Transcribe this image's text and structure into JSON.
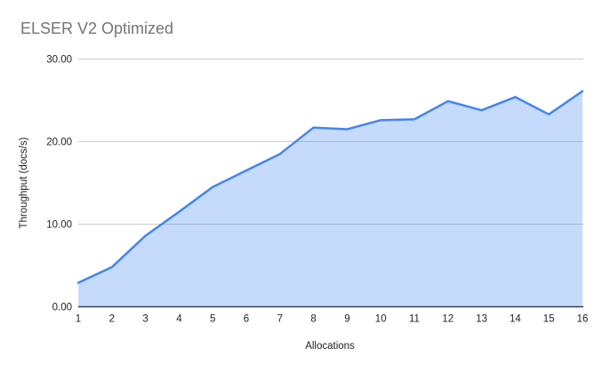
{
  "chart_data": {
    "type": "area",
    "title": "ELSER V2 Optimized",
    "xlabel": "Allocations",
    "ylabel": "Throughput (docs/s)",
    "categories": [
      "1",
      "2",
      "3",
      "4",
      "5",
      "6",
      "7",
      "8",
      "9",
      "10",
      "11",
      "12",
      "13",
      "14",
      "15",
      "16"
    ],
    "series": [
      {
        "name": "Throughput (docs/s)",
        "values": [
          2.9,
          4.8,
          8.6,
          11.5,
          14.5,
          16.5,
          18.5,
          21.7,
          21.5,
          22.6,
          22.7,
          24.9,
          23.8,
          25.4,
          23.3,
          26.1
        ]
      }
    ],
    "ylim": [
      0,
      30
    ],
    "yticks": [
      0,
      10,
      20,
      30
    ],
    "ytick_labels": [
      "0.00",
      "10.00",
      "20.00",
      "30.00"
    ],
    "grid": "horizontal-only",
    "legend": "none",
    "colors": {
      "line": "#4285f4",
      "area_fill": "#4285f4",
      "area_opacity": "0.3",
      "gridline": "#cccccc",
      "baseline": "#333333",
      "title_text": "#757575",
      "axis_text": "#222222",
      "background": "#ffffff"
    }
  }
}
